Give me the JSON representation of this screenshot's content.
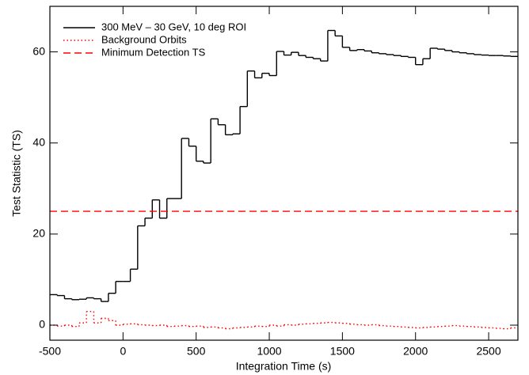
{
  "chart_data": {
    "type": "step",
    "xlabel": "Integration Time (s)",
    "ylabel": "Test Statistic (TS)",
    "x": [
      -500,
      -450,
      -400,
      -350,
      -300,
      -250,
      -200,
      -150,
      -100,
      -50,
      0,
      50,
      100,
      150,
      200,
      250,
      300,
      350,
      400,
      450,
      500,
      550,
      600,
      650,
      700,
      750,
      800,
      850,
      900,
      950,
      1000,
      1050,
      1100,
      1150,
      1200,
      1250,
      1300,
      1350,
      1400,
      1450,
      1500,
      1550,
      1600,
      1650,
      1700,
      1750,
      1800,
      1850,
      1900,
      1950,
      2000,
      2050,
      2100,
      2150,
      2200,
      2250,
      2300,
      2350,
      2400,
      2450,
      2500,
      2550,
      2600,
      2650
    ],
    "series": [
      {
        "name": "300 MeV – 30 GeV, 10 deg ROI",
        "color": "#000000",
        "dash": "solid",
        "values": [
          6.7,
          6.5,
          5.8,
          5.6,
          5.7,
          6.0,
          5.8,
          5.2,
          7.0,
          9.6,
          9.6,
          12.3,
          21.8,
          23.5,
          27.5,
          23.5,
          27.8,
          27.8,
          41,
          39.3,
          36,
          35.6,
          45.3,
          44,
          41.8,
          42,
          48,
          55.8,
          54.3,
          55.3,
          54.8,
          60.1,
          59.3,
          59.9,
          59.2,
          58.8,
          58.5,
          58,
          64.7,
          63.5,
          61,
          60.3,
          60.5,
          60.2,
          59.8,
          59.6,
          59.4,
          59.2,
          59,
          58.8,
          57.2,
          58.5,
          60.8,
          60.6,
          60.3,
          60,
          59.8,
          59.6,
          59.4,
          59.3,
          59.2,
          59.2,
          59.1,
          59.0
        ]
      },
      {
        "name": "Background Orbits",
        "color": "#ff0000",
        "dash": "dotted",
        "values": [
          0,
          -0.2,
          0,
          -0.3,
          0.5,
          3,
          0.5,
          1.5,
          1.0,
          0,
          0.2,
          0.3,
          0.1,
          0,
          -0.1,
          0,
          -0.3,
          -0.2,
          -0.1,
          -0.3,
          -0.2,
          -0.5,
          -0.4,
          -0.6,
          -0.8,
          -0.6,
          -0.5,
          -0.4,
          -0.2,
          -0.3,
          0,
          -0.2,
          0.1,
          0,
          0.2,
          0.3,
          0.4,
          0.5,
          0.6,
          0.5,
          0.4,
          0.2,
          0.1,
          0,
          0.1,
          -0.1,
          -0.2,
          -0.3,
          -0.4,
          -0.5,
          -0.6,
          -0.5,
          -0.4,
          -0.3,
          -0.2,
          -0.1,
          -0.2,
          -0.3,
          -0.4,
          -0.5,
          -0.6,
          -0.7,
          -0.8,
          -0.6
        ]
      },
      {
        "name": "Minimum Detection TS",
        "color": "#ff0000",
        "dash": "dashed",
        "y": 25
      }
    ],
    "xlim": [
      -500,
      2700
    ],
    "ylim": [
      -3.3,
      70
    ],
    "xticks": [
      -500,
      0,
      500,
      1000,
      1500,
      2000,
      2500
    ],
    "yticks": [
      0,
      20,
      40,
      60
    ]
  }
}
